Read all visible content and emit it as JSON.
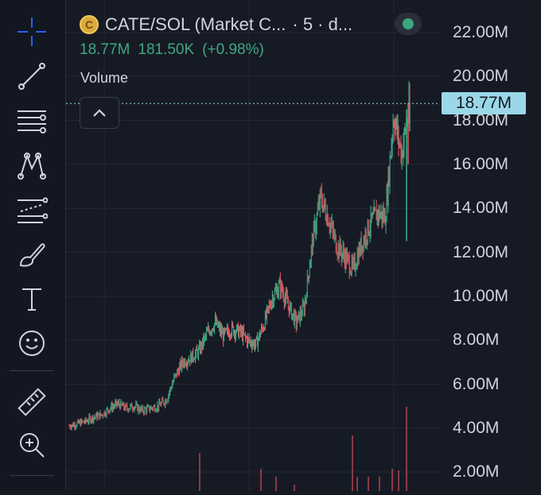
{
  "legend": {
    "symbol": "CATE/SOL (Market C...",
    "interval": "· 5 · d...",
    "coin_letter": "C",
    "last_value": "18.77M",
    "change": "181.50K",
    "change_pct": "(+0.98%)",
    "volume_label": "Volume"
  },
  "price_axis": {
    "ticks": [
      "22.00M",
      "20.00M",
      "18.00M",
      "16.00M",
      "14.00M",
      "12.00M",
      "10.00M",
      "8.00M",
      "6.00M",
      "4.00M",
      "2.00M"
    ],
    "current_price_label": "18.77M"
  },
  "colors": {
    "background": "#161a25",
    "up": "#3fa782",
    "down": "#e2555f",
    "price_badge": "#9ad8e8",
    "text": "#d1d4dc",
    "accent": "#2962ff"
  },
  "toolbar": {
    "icons": [
      "crosshair-icon",
      "trend-line-icon",
      "fib-retracement-icon",
      "pattern-icon",
      "prediction-icon",
      "brush-icon",
      "text-icon",
      "emoji-icon",
      "ruler-icon",
      "zoom-in-icon"
    ]
  },
  "chart_data": {
    "type": "candlestick",
    "y_unit": "M",
    "ylim": [
      1.0,
      23.0
    ],
    "approx_close_path": [
      4.1,
      4.2,
      4.3,
      4.5,
      4.6,
      4.9,
      5.1,
      4.9,
      5.0,
      4.8,
      4.9,
      5.0,
      5.3,
      6.3,
      7.0,
      7.2,
      7.5,
      8.3,
      8.8,
      8.2,
      8.5,
      8.4,
      8.0,
      7.8,
      8.7,
      9.9,
      10.5,
      9.6,
      8.8,
      9.5,
      12.5,
      14.5,
      13.5,
      12.3,
      11.8,
      11.2,
      12.3,
      13.2,
      13.8,
      13.6,
      18.2,
      16.5,
      18.77
    ],
    "last": 18.77,
    "high": 18.8
  }
}
